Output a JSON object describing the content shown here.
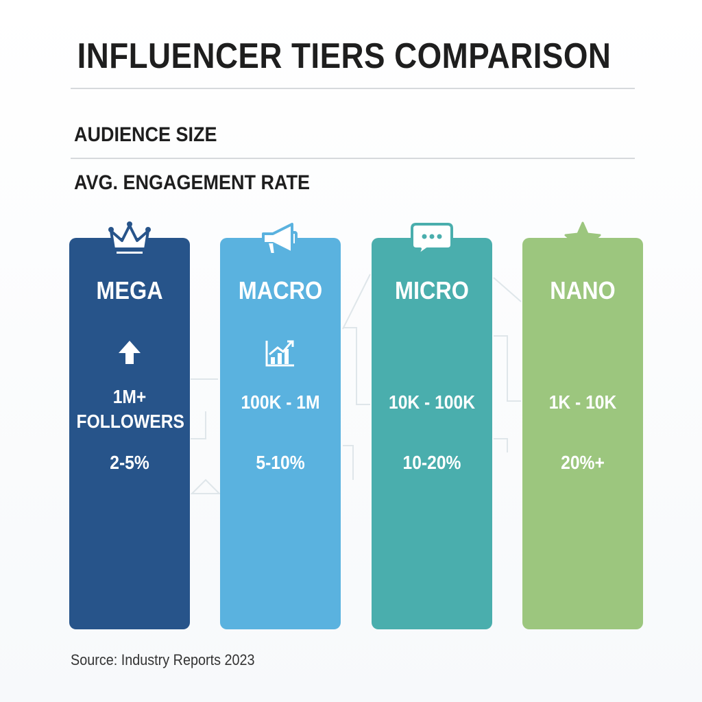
{
  "title": "INFLUENCER TIERS COMPARISON",
  "row_labels": {
    "audience": "AUDIENCE SIZE",
    "engagement": "AVG. ENGAGEMENT RATE"
  },
  "tiers": [
    {
      "name": "MEGA",
      "icon": "crown-icon",
      "metric_icon": "arrow-up-icon",
      "audience": "1M+\nFOLLOWERS",
      "engagement": "2-5%",
      "color": "#27548a"
    },
    {
      "name": "MACRO",
      "icon": "megaphone-icon",
      "metric_icon": "growth-chart-icon",
      "audience": "100K - 1M",
      "engagement": "5-10%",
      "color": "#5ab2df"
    },
    {
      "name": "MICRO",
      "icon": "chat-bubble-icon",
      "metric_icon": "",
      "audience": "10K - 100K",
      "engagement": "10-20%",
      "color": "#4aaead"
    },
    {
      "name": "NANO",
      "icon": "star-icon",
      "metric_icon": "",
      "audience": "1K - 10K",
      "engagement": "20%+",
      "color": "#9cc67e"
    }
  ],
  "source": "Source: Industry Reports 2023"
}
